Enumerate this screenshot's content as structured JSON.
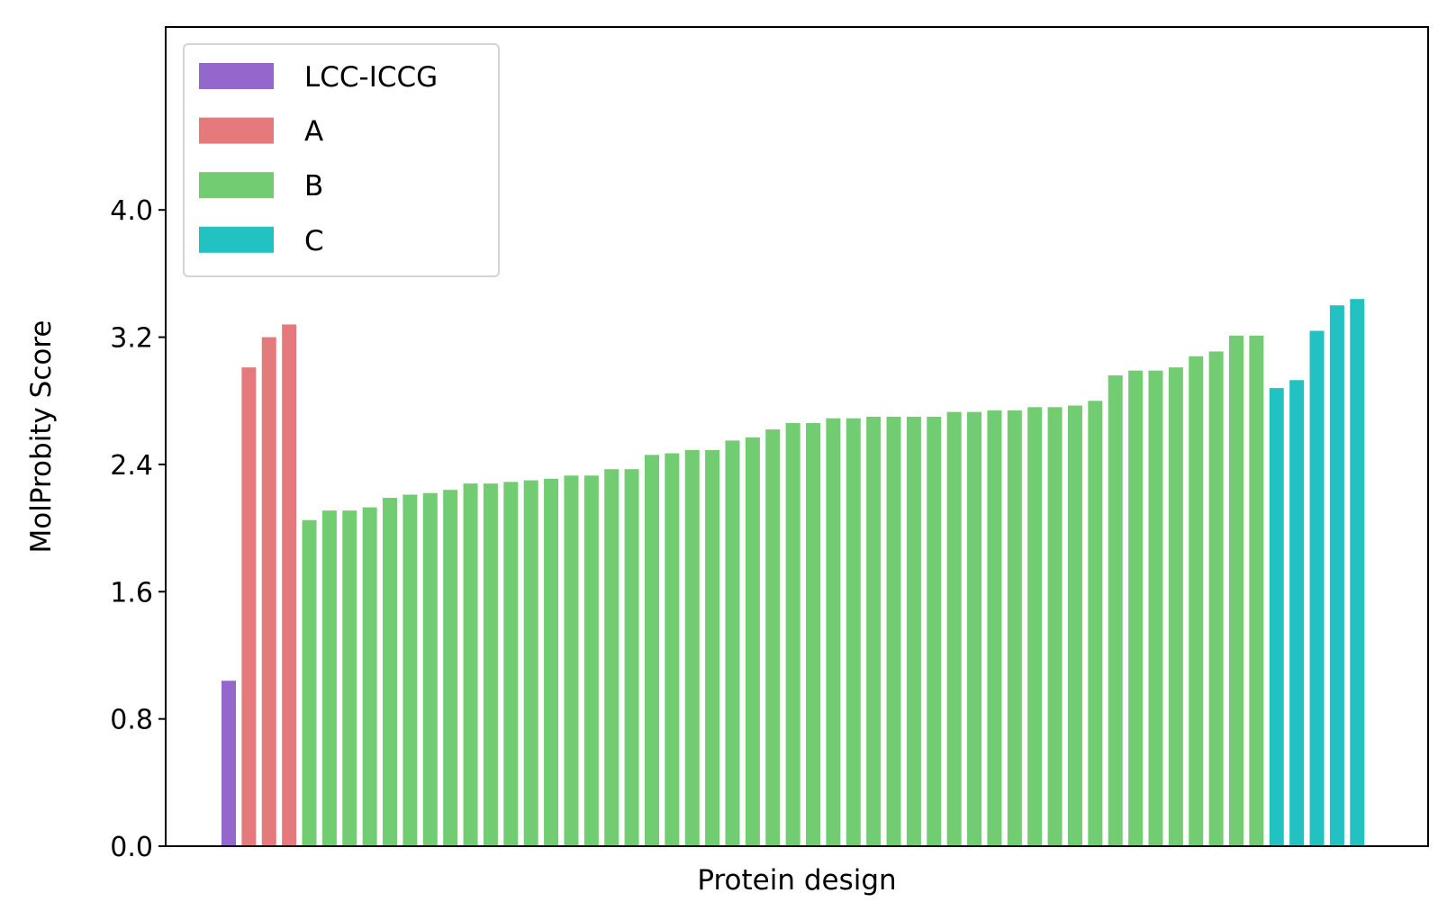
{
  "chart_data": {
    "type": "bar",
    "xlabel": "Protein design",
    "ylabel": "MolProbity Score",
    "ylim": [
      0,
      5.15
    ],
    "yticks": [
      "0.0",
      "0.8",
      "1.6",
      "2.4",
      "3.2",
      "4.0"
    ],
    "xticks_shown": false,
    "grid": false,
    "legend_position": "upper-left",
    "series": [
      {
        "name": "LCC-ICCG",
        "color": "#9467cc",
        "values": [
          1.04
        ]
      },
      {
        "name": "A",
        "color": "#e57a7d",
        "values": [
          3.01,
          3.2,
          3.28
        ]
      },
      {
        "name": "B",
        "color": "#72cc72",
        "values": [
          2.05,
          2.11,
          2.11,
          2.13,
          2.19,
          2.21,
          2.22,
          2.24,
          2.28,
          2.28,
          2.29,
          2.3,
          2.31,
          2.33,
          2.33,
          2.37,
          2.37,
          2.46,
          2.47,
          2.49,
          2.49,
          2.55,
          2.57,
          2.62,
          2.66,
          2.66,
          2.69,
          2.69,
          2.7,
          2.7,
          2.7,
          2.7,
          2.73,
          2.73,
          2.74,
          2.74,
          2.76,
          2.76,
          2.77,
          2.8,
          2.96,
          2.99,
          2.99,
          3.01,
          3.08,
          3.11,
          3.21,
          3.21
        ]
      },
      {
        "name": "C",
        "color": "#22c2c2",
        "values": [
          2.88,
          2.93,
          3.24,
          3.4,
          3.44
        ]
      }
    ]
  }
}
